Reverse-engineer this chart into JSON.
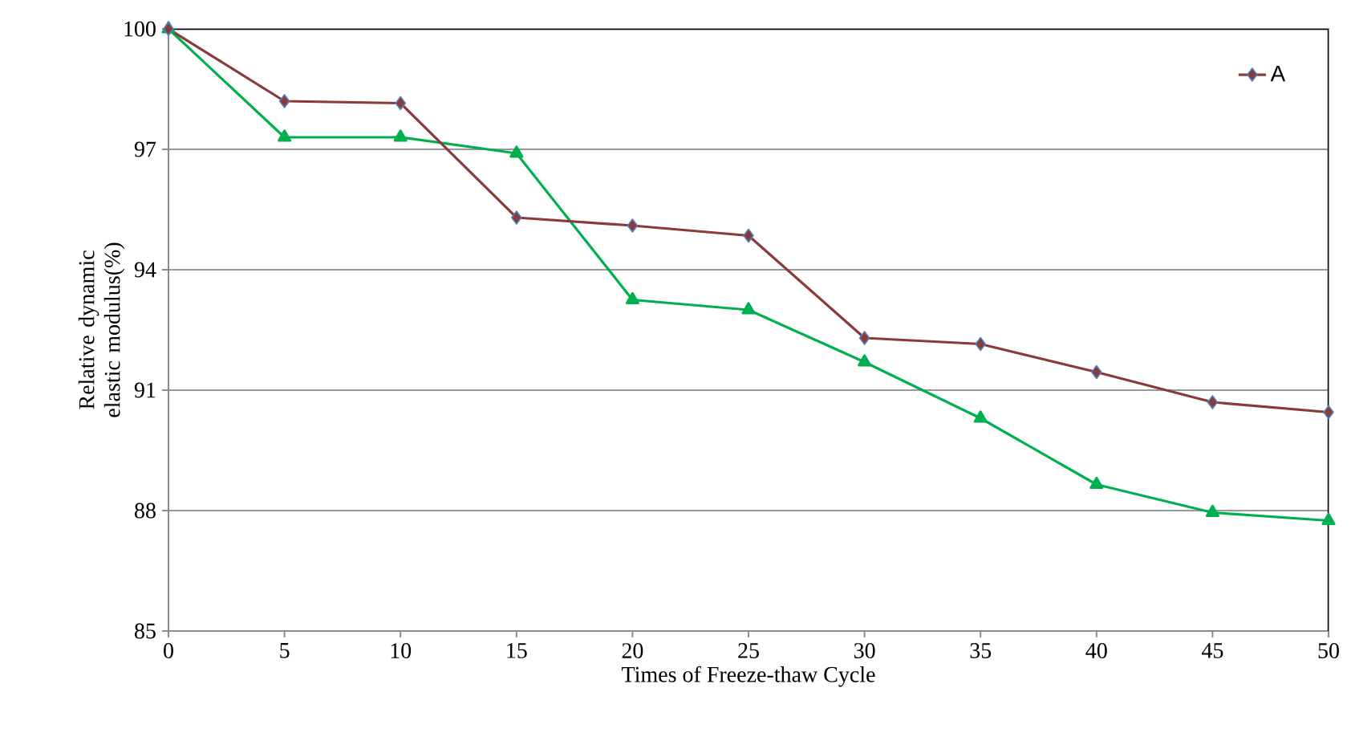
{
  "chart_data": {
    "type": "line",
    "xlabel": "Times of Freeze-thaw Cycle",
    "ylabel": "Relative dynamic elastic modulus(%)",
    "x": [
      0,
      5,
      10,
      15,
      20,
      25,
      30,
      35,
      40,
      45,
      50
    ],
    "series": [
      {
        "name": "A",
        "color": "#8b3a3a",
        "marker": "diamond",
        "values": [
          100,
          98.2,
          98.15,
          95.3,
          95.1,
          94.85,
          92.3,
          92.15,
          91.45,
          90.7,
          90.45
        ]
      },
      {
        "color": "#00b050",
        "marker": "triangle",
        "values": [
          100,
          97.3,
          97.3,
          96.9,
          93.25,
          93.0,
          91.7,
          90.3,
          88.65,
          87.95,
          87.75
        ]
      }
    ],
    "xlim": [
      0,
      50
    ],
    "xticks": [
      0,
      5,
      10,
      15,
      20,
      25,
      30,
      35,
      40,
      45,
      50
    ],
    "ylim": [
      85,
      100
    ],
    "yticks": [
      85,
      88,
      91,
      94,
      97,
      100
    ],
    "grid": "y",
    "legend": "top right",
    "line_style": "solid"
  }
}
